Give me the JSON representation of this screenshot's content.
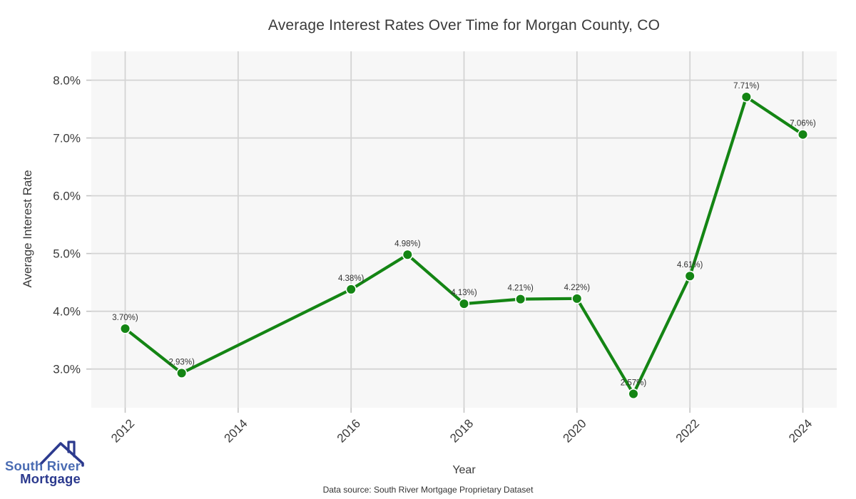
{
  "page": {
    "caption": "Data source: South River Mortgage Proprietary Dataset"
  },
  "logo": {
    "line1": "South River",
    "line2": "Mortgage",
    "icon": "house-roof-icon",
    "color_primary": "#4a6cb3",
    "color_secondary": "#2c3a8e"
  },
  "chart_data": {
    "type": "line",
    "title": "Average Interest Rates Over Time for Morgan County, CO",
    "xlabel": "Year",
    "ylabel": "Average Interest Rate",
    "x": [
      2012,
      2013,
      2016,
      2017,
      2018,
      2019,
      2020,
      2021,
      2022,
      2023,
      2024
    ],
    "y": [
      3.7,
      2.93,
      4.38,
      4.98,
      4.13,
      4.21,
      4.22,
      2.57,
      4.61,
      7.71,
      7.06
    ],
    "point_labels": [
      "3.70%)",
      "2.93%)",
      "4.38%)",
      "4.98%)",
      "4.13%)",
      "4.21%)",
      "4.22%)",
      "2.57%)",
      "4.61%)",
      "7.71%)",
      "7.06%)"
    ],
    "x_ticks": [
      2012,
      2014,
      2016,
      2018,
      2020,
      2022,
      2024
    ],
    "y_ticks": [
      "8.0%",
      "7.0%",
      "6.0%",
      "5.0%",
      "4.0%",
      "3.0%"
    ],
    "y_tick_values": [
      8.0,
      7.0,
      6.0,
      5.0,
      4.0,
      3.0
    ],
    "xlim": [
      2011.4,
      2024.6
    ],
    "ylim": [
      2.33,
      8.5
    ],
    "grid": true,
    "legend": "none",
    "line_color": "#148514",
    "marker_color": "#148514",
    "panel_background": "#f7f7f7",
    "gridline_color": "#d4d4d4"
  }
}
